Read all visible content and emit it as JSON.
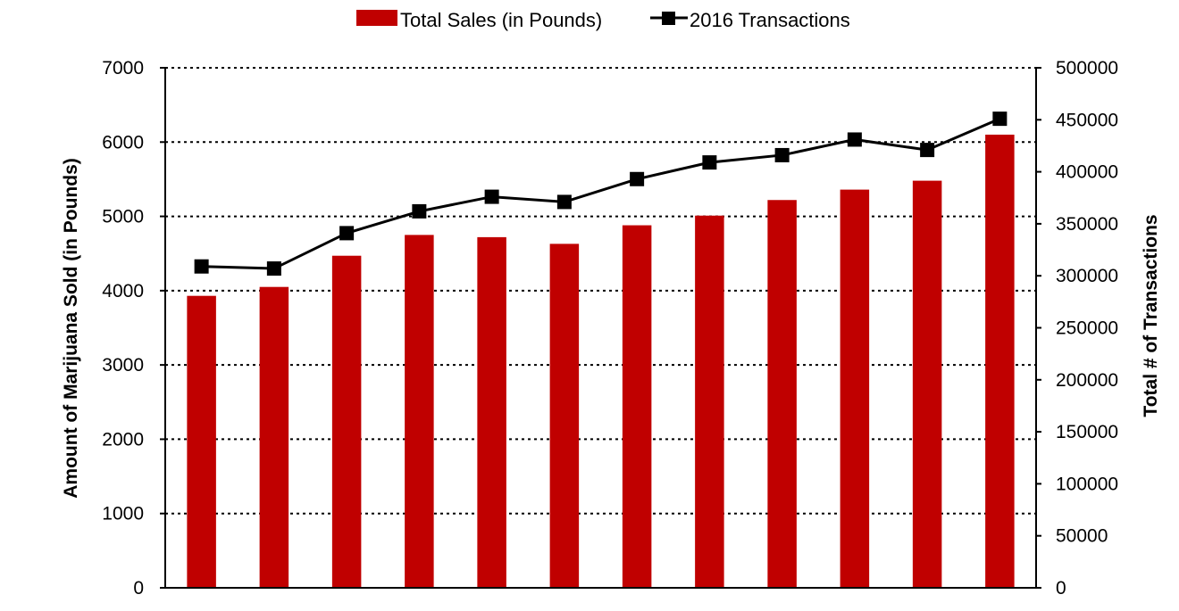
{
  "chart_data": {
    "type": "bar",
    "title": "",
    "categories": [
      "",
      "",
      "",
      "",
      "",
      "",
      "",
      "",
      "",
      "",
      "",
      ""
    ],
    "series": [
      {
        "name": "Total Sales (in Pounds)",
        "type": "bar",
        "axis": "left",
        "color": "#c00000",
        "values": [
          3930,
          4050,
          4470,
          4750,
          4720,
          4630,
          4880,
          5010,
          5220,
          5360,
          5480,
          6100
        ]
      },
      {
        "name": "2016 Transactions",
        "type": "line",
        "axis": "right",
        "color": "#000000",
        "marker": "square",
        "values": [
          309000,
          307000,
          341000,
          362000,
          376000,
          371000,
          393000,
          409000,
          416000,
          431000,
          421000,
          451000
        ]
      }
    ],
    "ylabel": "Amount of Marijuana Sold (in Pounds)",
    "y2label": "Total # of Transactions",
    "ylim": [
      0,
      7000
    ],
    "y2lim": [
      0,
      500000
    ],
    "yticks": [
      "0",
      "1000",
      "2000",
      "3000",
      "4000",
      "5000",
      "6000",
      "7000"
    ],
    "y2ticks": [
      "0",
      "50000",
      "100000",
      "150000",
      "200000",
      "250000",
      "300000",
      "350000",
      "400000",
      "450000",
      "500000"
    ],
    "grid": true,
    "legend_position": "top"
  }
}
